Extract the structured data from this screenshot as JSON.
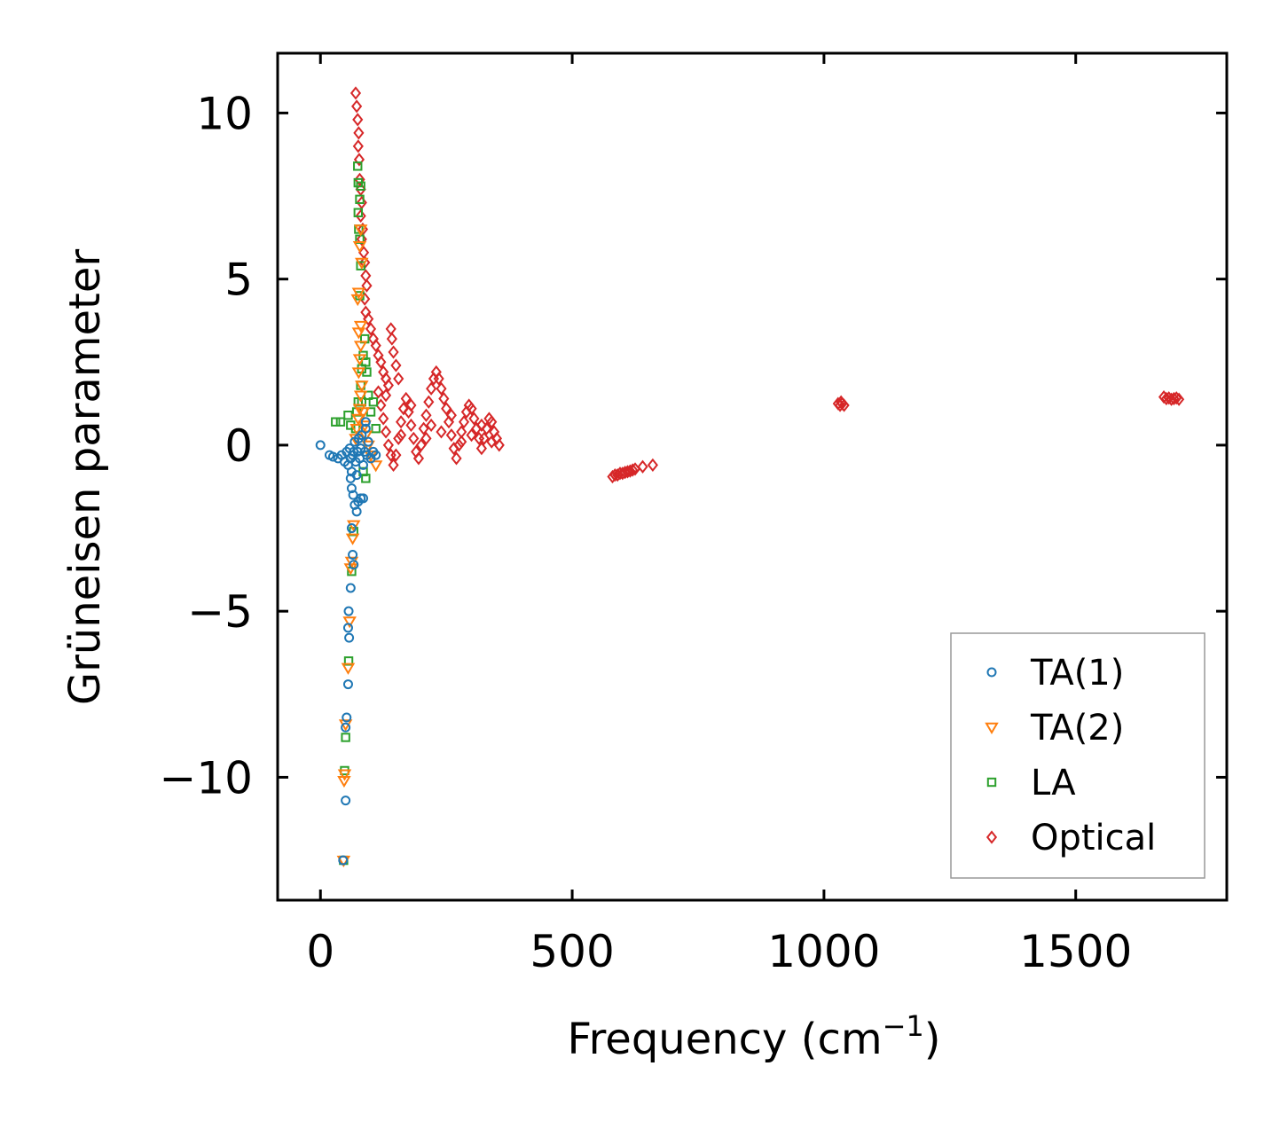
{
  "chart_data": {
    "type": "scatter",
    "title": "",
    "xlabel": "Frequency (cm",
    "xlabel_sup": "−1",
    "xlabel_close": ")",
    "ylabel": "Grüneisen parameter",
    "xlim": [
      -85,
      1800
    ],
    "ylim": [
      -13.7,
      11.8
    ],
    "x_ticks": [
      0,
      500,
      1000,
      1500
    ],
    "x_tick_labels": [
      "0",
      "500",
      "1000",
      "1500"
    ],
    "y_ticks": [
      10,
      5,
      0,
      -5,
      -10
    ],
    "y_tick_labels": [
      "10",
      "5",
      "0",
      "−5",
      "−10"
    ],
    "legend_position": "lower-right",
    "series": [
      {
        "name": "TA(1)",
        "color": "#1f77b4",
        "marker": "circle",
        "points": [
          [
            0,
            0
          ],
          [
            18,
            -0.3
          ],
          [
            25,
            -0.35
          ],
          [
            35,
            -0.4
          ],
          [
            42,
            -0.3
          ],
          [
            48,
            -0.5
          ],
          [
            52,
            -0.2
          ],
          [
            55,
            -0.6
          ],
          [
            58,
            -0.1
          ],
          [
            60,
            -0.4
          ],
          [
            62,
            -0.8
          ],
          [
            64,
            -0.3
          ],
          [
            66,
            -0.2
          ],
          [
            68,
            0.1
          ],
          [
            70,
            -0.5
          ],
          [
            72,
            -0.9
          ],
          [
            74,
            -0.2
          ],
          [
            76,
            0.2
          ],
          [
            78,
            -0.4
          ],
          [
            80,
            -0.1
          ],
          [
            82,
            0.3
          ],
          [
            85,
            -0.6
          ],
          [
            88,
            -0.2
          ],
          [
            90,
            0.5
          ],
          [
            92,
            -0.3
          ],
          [
            95,
            0.1
          ],
          [
            100,
            -0.4
          ],
          [
            105,
            -0.2
          ],
          [
            110,
            -0.3
          ],
          [
            60,
            -1.0
          ],
          [
            62,
            -1.3
          ],
          [
            65,
            -1.5
          ],
          [
            68,
            -1.8
          ],
          [
            72,
            -2.0
          ],
          [
            75,
            -1.7
          ],
          [
            80,
            -1.6
          ],
          [
            85,
            -1.6
          ],
          [
            90,
            0.7
          ],
          [
            62,
            -2.5
          ],
          [
            64,
            -3.3
          ],
          [
            66,
            -3.6
          ],
          [
            60,
            -4.3
          ],
          [
            56,
            -5.0
          ],
          [
            55,
            -5.5
          ],
          [
            57,
            -5.8
          ],
          [
            55,
            -7.2
          ],
          [
            52,
            -8.2
          ],
          [
            50,
            -8.5
          ],
          [
            50,
            -10.7
          ],
          [
            45,
            -12.5
          ]
        ]
      },
      {
        "name": "TA(2)",
        "color": "#ff7f0e",
        "marker": "triangle-down",
        "points": [
          [
            70,
            0.2
          ],
          [
            72,
            0.5
          ],
          [
            75,
            0.8
          ],
          [
            78,
            1.1
          ],
          [
            80,
            1.5
          ],
          [
            82,
            1.8
          ],
          [
            76,
            2.2
          ],
          [
            78,
            2.6
          ],
          [
            80,
            3.0
          ],
          [
            76,
            3.4
          ],
          [
            80,
            3.6
          ],
          [
            74,
            4.4
          ],
          [
            76,
            4.6
          ],
          [
            78,
            6.0
          ],
          [
            80,
            6.5
          ],
          [
            82,
            5.5
          ],
          [
            85,
            1.0
          ],
          [
            88,
            0.6
          ],
          [
            90,
            0.3
          ],
          [
            95,
            0.0
          ],
          [
            100,
            -0.3
          ],
          [
            110,
            -0.6
          ],
          [
            66,
            -2.4
          ],
          [
            64,
            -2.8
          ],
          [
            62,
            -3.5
          ],
          [
            60,
            -3.7
          ],
          [
            58,
            -5.3
          ],
          [
            55,
            -6.7
          ],
          [
            50,
            -8.4
          ],
          [
            48,
            -9.9
          ],
          [
            47,
            -10.1
          ],
          [
            46,
            -12.5
          ]
        ]
      },
      {
        "name": "LA",
        "color": "#2ca02c",
        "marker": "square",
        "points": [
          [
            30,
            0.7
          ],
          [
            40,
            0.7
          ],
          [
            55,
            0.9
          ],
          [
            60,
            0.6
          ],
          [
            70,
            0.5
          ],
          [
            72,
            1.0
          ],
          [
            75,
            1.3
          ],
          [
            80,
            1.8
          ],
          [
            82,
            2.3
          ],
          [
            85,
            2.7
          ],
          [
            88,
            3.2
          ],
          [
            90,
            2.5
          ],
          [
            92,
            2.2
          ],
          [
            95,
            1.5
          ],
          [
            100,
            1.0
          ],
          [
            105,
            1.3
          ],
          [
            110,
            0.5
          ],
          [
            78,
            4.5
          ],
          [
            80,
            5.4
          ],
          [
            78,
            6.2
          ],
          [
            76,
            6.5
          ],
          [
            75,
            7.0
          ],
          [
            78,
            7.4
          ],
          [
            75,
            7.9
          ],
          [
            74,
            8.4
          ],
          [
            80,
            7.8
          ],
          [
            82,
            1.3
          ],
          [
            85,
            -0.8
          ],
          [
            90,
            -1.0
          ],
          [
            66,
            -2.6
          ],
          [
            62,
            -3.8
          ],
          [
            56,
            -6.5
          ],
          [
            50,
            -8.8
          ],
          [
            48,
            -9.8
          ],
          [
            46,
            -12.5
          ]
        ]
      },
      {
        "name": "Optical",
        "color": "#d62728",
        "marker": "diamond",
        "points": [
          [
            70,
            10.6
          ],
          [
            72,
            10.2
          ],
          [
            74,
            9.8
          ],
          [
            76,
            9.4
          ],
          [
            75,
            9.0
          ],
          [
            77,
            8.6
          ],
          [
            78,
            8.0
          ],
          [
            80,
            7.7
          ],
          [
            82,
            7.3
          ],
          [
            80,
            6.9
          ],
          [
            84,
            6.5
          ],
          [
            82,
            6.2
          ],
          [
            86,
            5.8
          ],
          [
            88,
            5.5
          ],
          [
            90,
            5.1
          ],
          [
            92,
            4.8
          ],
          [
            88,
            4.4
          ],
          [
            90,
            4.0
          ],
          [
            95,
            3.8
          ],
          [
            100,
            3.5
          ],
          [
            105,
            3.2
          ],
          [
            110,
            3.0
          ],
          [
            115,
            2.7
          ],
          [
            120,
            2.5
          ],
          [
            125,
            2.2
          ],
          [
            130,
            2.0
          ],
          [
            135,
            1.8
          ],
          [
            140,
            3.5
          ],
          [
            142,
            3.2
          ],
          [
            145,
            2.8
          ],
          [
            150,
            2.4
          ],
          [
            155,
            2.0
          ],
          [
            115,
            1.6
          ],
          [
            120,
            1.2
          ],
          [
            125,
            0.8
          ],
          [
            130,
            0.4
          ],
          [
            135,
            0.0
          ],
          [
            140,
            -0.3
          ],
          [
            145,
            -0.6
          ],
          [
            150,
            -0.3
          ],
          [
            155,
            0.2
          ],
          [
            160,
            0.7
          ],
          [
            165,
            1.1
          ],
          [
            170,
            1.4
          ],
          [
            175,
            1.0
          ],
          [
            180,
            0.6
          ],
          [
            185,
            0.2
          ],
          [
            190,
            -0.2
          ],
          [
            195,
            -0.4
          ],
          [
            200,
            0.0
          ],
          [
            205,
            0.5
          ],
          [
            210,
            0.9
          ],
          [
            215,
            1.3
          ],
          [
            220,
            1.7
          ],
          [
            225,
            2.0
          ],
          [
            230,
            2.2
          ],
          [
            235,
            2.0
          ],
          [
            240,
            1.7
          ],
          [
            245,
            1.4
          ],
          [
            250,
            1.1
          ],
          [
            255,
            0.7
          ],
          [
            260,
            0.3
          ],
          [
            265,
            -0.1
          ],
          [
            270,
            -0.4
          ],
          [
            275,
            0.0
          ],
          [
            280,
            0.4
          ],
          [
            285,
            0.7
          ],
          [
            290,
            1.0
          ],
          [
            295,
            1.2
          ],
          [
            300,
            1.1
          ],
          [
            305,
            0.8
          ],
          [
            310,
            0.5
          ],
          [
            315,
            0.2
          ],
          [
            320,
            -0.1
          ],
          [
            325,
            0.2
          ],
          [
            330,
            0.5
          ],
          [
            335,
            0.8
          ],
          [
            340,
            0.7
          ],
          [
            345,
            0.4
          ],
          [
            350,
            0.2
          ],
          [
            355,
            0.0
          ],
          [
            210,
            0.2
          ],
          [
            220,
            0.6
          ],
          [
            240,
            0.4
          ],
          [
            260,
            0.9
          ],
          [
            280,
            0.1
          ],
          [
            300,
            0.3
          ],
          [
            320,
            0.6
          ],
          [
            340,
            0.1
          ],
          [
            180,
            1.2
          ],
          [
            160,
            0.3
          ],
          [
            130,
            1.5
          ],
          [
            580,
            -0.95
          ],
          [
            585,
            -0.9
          ],
          [
            590,
            -0.9
          ],
          [
            595,
            -0.85
          ],
          [
            600,
            -0.85
          ],
          [
            605,
            -0.82
          ],
          [
            610,
            -0.8
          ],
          [
            615,
            -0.78
          ],
          [
            620,
            -0.75
          ],
          [
            625,
            -0.72
          ],
          [
            640,
            -0.65
          ],
          [
            660,
            -0.6
          ],
          [
            1028,
            1.25
          ],
          [
            1032,
            1.2
          ],
          [
            1036,
            1.25
          ],
          [
            1040,
            1.2
          ],
          [
            1034,
            1.3
          ],
          [
            1675,
            1.45
          ],
          [
            1680,
            1.4
          ],
          [
            1685,
            1.42
          ],
          [
            1690,
            1.38
          ],
          [
            1695,
            1.4
          ],
          [
            1700,
            1.42
          ],
          [
            1705,
            1.38
          ]
        ]
      }
    ]
  }
}
